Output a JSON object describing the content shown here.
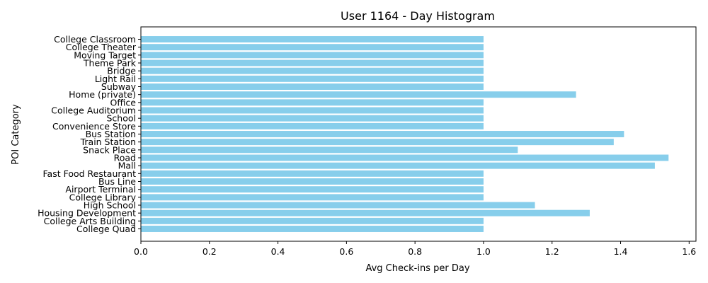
{
  "chart_data": {
    "type": "bar",
    "orientation": "horizontal",
    "title": "User 1164 - Day Histogram",
    "xlabel": "Avg Check-ins per Day",
    "ylabel": "POI Category",
    "xlim": [
      0,
      1.62
    ],
    "x_ticks": [
      "0.0",
      "0.2",
      "0.4",
      "0.6",
      "0.8",
      "1.0",
      "1.2",
      "1.4",
      "1.6"
    ],
    "bar_color": "#87ceeb",
    "grid": false,
    "categories": [
      "College Classroom",
      "College Theater",
      "Moving Target",
      "Theme Park",
      "Bridge",
      "Light Rail",
      "Subway",
      "Home (private)",
      "Office",
      "College Auditorium",
      "School",
      "Convenience Store",
      "Bus Station",
      "Train Station",
      "Snack Place",
      "Road",
      "Mall",
      "Fast Food Restaurant",
      "Bus Line",
      "Airport Terminal",
      "College Library",
      "High School",
      "Housing Development",
      "College Arts Building",
      "College Quad"
    ],
    "values": [
      1.0,
      1.0,
      1.0,
      1.0,
      1.0,
      1.0,
      1.0,
      1.27,
      1.0,
      1.0,
      1.0,
      1.0,
      1.41,
      1.38,
      1.1,
      1.54,
      1.5,
      1.0,
      1.0,
      1.0,
      1.0,
      1.15,
      1.31,
      1.0,
      1.0
    ]
  }
}
